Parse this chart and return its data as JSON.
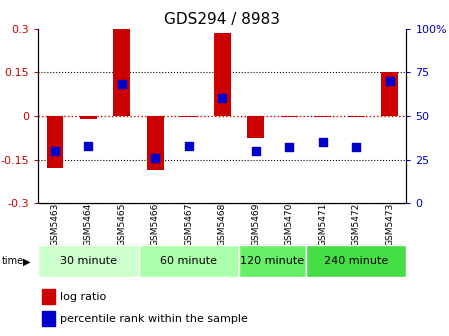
{
  "title": "GDS294 / 8983",
  "samples": [
    "GSM5463",
    "GSM5464",
    "GSM5465",
    "GSM5466",
    "GSM5467",
    "GSM5468",
    "GSM5469",
    "GSM5470",
    "GSM5471",
    "GSM5472",
    "GSM5473"
  ],
  "log_ratio": [
    -0.18,
    -0.01,
    0.305,
    -0.185,
    -0.005,
    0.285,
    -0.075,
    -0.005,
    -0.005,
    -0.003,
    0.152
  ],
  "percentile": [
    30,
    33,
    68,
    26,
    33,
    60,
    30,
    32,
    35,
    32,
    70
  ],
  "groups": [
    {
      "label": "30 minute",
      "start": 0,
      "end": 3,
      "color": "#ccffcc"
    },
    {
      "label": "60 minute",
      "start": 3,
      "end": 6,
      "color": "#aaffaa"
    },
    {
      "label": "120 minute",
      "start": 6,
      "end": 8,
      "color": "#66ee66"
    },
    {
      "label": "240 minute",
      "start": 8,
      "end": 11,
      "color": "#44dd44"
    }
  ],
  "ylim_left": [
    -0.3,
    0.3
  ],
  "ylim_right": [
    0,
    100
  ],
  "bar_color": "#cc0000",
  "dot_color": "#0000cc",
  "bar_width": 0.5,
  "dot_size": 35,
  "hline_color": "#cc0000",
  "grid_color": "#000000",
  "bg_color": "#ffffff",
  "plot_bg": "#ffffff",
  "left_tick_color": "#cc0000",
  "right_tick_color": "#0000cc",
  "title_fontsize": 11,
  "tick_fontsize": 8,
  "label_fontsize": 8,
  "sample_box_color": "#cccccc",
  "left_ticks": [
    -0.3,
    -0.15,
    0,
    0.15,
    0.3
  ],
  "left_tick_labels": [
    "-0.3",
    "-0.15",
    "0",
    "0.15",
    "0.3"
  ],
  "right_ticks": [
    0,
    25,
    50,
    75,
    100
  ],
  "right_tick_labels": [
    "0",
    "25",
    "50",
    "75",
    "100%"
  ]
}
